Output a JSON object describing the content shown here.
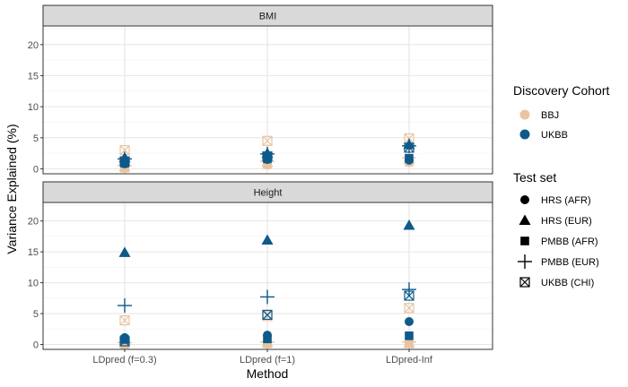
{
  "chart_data": {
    "type": "scatter",
    "xlabel": "Method",
    "ylabel": "Variance Explained (%)",
    "categories": [
      "LDpred (f=0.3)",
      "LDpred (f=1)",
      "LDpred-Inf"
    ],
    "y_ticks": [
      "0",
      "5",
      "10",
      "15",
      "20"
    ],
    "ylim": [
      -0.8,
      23
    ],
    "grid": true,
    "facets": [
      {
        "label": "BMI",
        "points": [
          {
            "method": "LDpred (f=0.3)",
            "cohort": "BBJ",
            "test": "HRS (AFR)",
            "y": 0.1
          },
          {
            "method": "LDpred (f=0.3)",
            "cohort": "BBJ",
            "test": "HRS (EUR)",
            "y": 0.3
          },
          {
            "method": "LDpred (f=0.3)",
            "cohort": "BBJ",
            "test": "PMBB (AFR)",
            "y": 0.1
          },
          {
            "method": "LDpred (f=0.3)",
            "cohort": "BBJ",
            "test": "PMBB (EUR)",
            "y": 0.5
          },
          {
            "method": "LDpred (f=0.3)",
            "cohort": "BBJ",
            "test": "UKBB (CHI)",
            "y": 3.0
          },
          {
            "method": "LDpred (f=0.3)",
            "cohort": "UKBB",
            "test": "HRS (AFR)",
            "y": 0.8
          },
          {
            "method": "LDpred (f=0.3)",
            "cohort": "UKBB",
            "test": "HRS (EUR)",
            "y": 1.8
          },
          {
            "method": "LDpred (f=0.3)",
            "cohort": "UKBB",
            "test": "PMBB (AFR)",
            "y": 0.9
          },
          {
            "method": "LDpred (f=0.3)",
            "cohort": "UKBB",
            "test": "PMBB (EUR)",
            "y": 1.6
          },
          {
            "method": "LDpred (f=0.3)",
            "cohort": "UKBB",
            "test": "UKBB (CHI)",
            "y": 1.2
          },
          {
            "method": "LDpred (f=1)",
            "cohort": "BBJ",
            "test": "HRS (AFR)",
            "y": 0.6
          },
          {
            "method": "LDpred (f=1)",
            "cohort": "BBJ",
            "test": "HRS (EUR)",
            "y": 1.0
          },
          {
            "method": "LDpred (f=1)",
            "cohort": "BBJ",
            "test": "PMBB (AFR)",
            "y": 0.7
          },
          {
            "method": "LDpred (f=1)",
            "cohort": "BBJ",
            "test": "PMBB (EUR)",
            "y": 1.2
          },
          {
            "method": "LDpred (f=1)",
            "cohort": "BBJ",
            "test": "UKBB (CHI)",
            "y": 4.5
          },
          {
            "method": "LDpred (f=1)",
            "cohort": "UKBB",
            "test": "HRS (AFR)",
            "y": 1.5
          },
          {
            "method": "LDpred (f=1)",
            "cohort": "UKBB",
            "test": "HRS (EUR)",
            "y": 2.5
          },
          {
            "method": "LDpred (f=1)",
            "cohort": "UKBB",
            "test": "PMBB (AFR)",
            "y": 1.6
          },
          {
            "method": "LDpred (f=1)",
            "cohort": "UKBB",
            "test": "PMBB (EUR)",
            "y": 2.4
          },
          {
            "method": "LDpred (f=1)",
            "cohort": "UKBB",
            "test": "UKBB (CHI)",
            "y": 2.0
          },
          {
            "method": "LDpred-Inf",
            "cohort": "BBJ",
            "test": "HRS (AFR)",
            "y": 1.0
          },
          {
            "method": "LDpred-Inf",
            "cohort": "BBJ",
            "test": "HRS (EUR)",
            "y": 1.5
          },
          {
            "method": "LDpred-Inf",
            "cohort": "BBJ",
            "test": "PMBB (AFR)",
            "y": 1.1
          },
          {
            "method": "LDpred-Inf",
            "cohort": "BBJ",
            "test": "PMBB (EUR)",
            "y": 1.8
          },
          {
            "method": "LDpred-Inf",
            "cohort": "BBJ",
            "test": "UKBB (CHI)",
            "y": 4.9
          },
          {
            "method": "LDpred-Inf",
            "cohort": "UKBB",
            "test": "HRS (AFR)",
            "y": 1.4
          },
          {
            "method": "LDpred-Inf",
            "cohort": "UKBB",
            "test": "HRS (EUR)",
            "y": 3.9
          },
          {
            "method": "LDpred-Inf",
            "cohort": "UKBB",
            "test": "PMBB (AFR)",
            "y": 1.7
          },
          {
            "method": "LDpred-Inf",
            "cohort": "UKBB",
            "test": "PMBB (EUR)",
            "y": 3.7
          },
          {
            "method": "LDpred-Inf",
            "cohort": "UKBB",
            "test": "UKBB (CHI)",
            "y": 3.4
          }
        ]
      },
      {
        "label": "Height",
        "points": [
          {
            "method": "LDpred (f=0.3)",
            "cohort": "BBJ",
            "test": "HRS (AFR)",
            "y": 0.1
          },
          {
            "method": "LDpred (f=0.3)",
            "cohort": "BBJ",
            "test": "HRS (EUR)",
            "y": 0.2
          },
          {
            "method": "LDpred (f=0.3)",
            "cohort": "BBJ",
            "test": "PMBB (AFR)",
            "y": 0.0
          },
          {
            "method": "LDpred (f=0.3)",
            "cohort": "BBJ",
            "test": "PMBB (EUR)",
            "y": 0.3
          },
          {
            "method": "LDpred (f=0.3)",
            "cohort": "BBJ",
            "test": "UKBB (CHI)",
            "y": 3.9
          },
          {
            "method": "LDpred (f=0.3)",
            "cohort": "UKBB",
            "test": "HRS (AFR)",
            "y": 1.1
          },
          {
            "method": "LDpred (f=0.3)",
            "cohort": "UKBB",
            "test": "HRS (EUR)",
            "y": 14.9
          },
          {
            "method": "LDpred (f=0.3)",
            "cohort": "UKBB",
            "test": "PMBB (AFR)",
            "y": 0.8
          },
          {
            "method": "LDpred (f=0.3)",
            "cohort": "UKBB",
            "test": "PMBB (EUR)",
            "y": 6.3
          },
          {
            "method": "LDpred (f=0.3)",
            "cohort": "UKBB",
            "test": "UKBB (CHI)",
            "y": 0.5
          },
          {
            "method": "LDpred (f=1)",
            "cohort": "BBJ",
            "test": "HRS (AFR)",
            "y": 0.1
          },
          {
            "method": "LDpred (f=1)",
            "cohort": "BBJ",
            "test": "HRS (EUR)",
            "y": 0.3
          },
          {
            "method": "LDpred (f=1)",
            "cohort": "BBJ",
            "test": "PMBB (AFR)",
            "y": 0.1
          },
          {
            "method": "LDpred (f=1)",
            "cohort": "BBJ",
            "test": "PMBB (EUR)",
            "y": 0.4
          },
          {
            "method": "LDpred (f=1)",
            "cohort": "BBJ",
            "test": "UKBB (CHI)",
            "y": 4.6
          },
          {
            "method": "LDpred (f=1)",
            "cohort": "UKBB",
            "test": "HRS (AFR)",
            "y": 1.5
          },
          {
            "method": "LDpred (f=1)",
            "cohort": "UKBB",
            "test": "HRS (EUR)",
            "y": 16.9
          },
          {
            "method": "LDpred (f=1)",
            "cohort": "UKBB",
            "test": "PMBB (AFR)",
            "y": 0.9
          },
          {
            "method": "LDpred (f=1)",
            "cohort": "UKBB",
            "test": "PMBB (EUR)",
            "y": 7.7
          },
          {
            "method": "LDpred (f=1)",
            "cohort": "UKBB",
            "test": "UKBB (CHI)",
            "y": 4.8
          },
          {
            "method": "LDpred-Inf",
            "cohort": "BBJ",
            "test": "HRS (AFR)",
            "y": 0.3
          },
          {
            "method": "LDpred-Inf",
            "cohort": "BBJ",
            "test": "HRS (EUR)",
            "y": 0.2
          },
          {
            "method": "LDpred-Inf",
            "cohort": "BBJ",
            "test": "PMBB (AFR)",
            "y": 0.1
          },
          {
            "method": "LDpred-Inf",
            "cohort": "BBJ",
            "test": "PMBB (EUR)",
            "y": 0.4
          },
          {
            "method": "LDpred-Inf",
            "cohort": "BBJ",
            "test": "UKBB (CHI)",
            "y": 5.9
          },
          {
            "method": "LDpred-Inf",
            "cohort": "UKBB",
            "test": "HRS (AFR)",
            "y": 3.7
          },
          {
            "method": "LDpred-Inf",
            "cohort": "UKBB",
            "test": "HRS (EUR)",
            "y": 19.3
          },
          {
            "method": "LDpred-Inf",
            "cohort": "UKBB",
            "test": "PMBB (AFR)",
            "y": 1.4
          },
          {
            "method": "LDpred-Inf",
            "cohort": "UKBB",
            "test": "PMBB (EUR)",
            "y": 8.9
          },
          {
            "method": "LDpred-Inf",
            "cohort": "UKBB",
            "test": "UKBB (CHI)",
            "y": 7.9
          }
        ]
      }
    ],
    "legend": {
      "placement": "right",
      "cohort": {
        "title": "Discovery Cohort",
        "items": [
          {
            "label": "BBJ",
            "color": "#E8C4A0"
          },
          {
            "label": "UKBB",
            "color": "#0E5A8A"
          }
        ]
      },
      "test": {
        "title": "Test set",
        "items": [
          {
            "label": "HRS (AFR)",
            "shape": "circle"
          },
          {
            "label": "HRS (EUR)",
            "shape": "triangle"
          },
          {
            "label": "PMBB (AFR)",
            "shape": "square"
          },
          {
            "label": "PMBB (EUR)",
            "shape": "plus"
          },
          {
            "label": "UKBB (CHI)",
            "shape": "boxed-x"
          }
        ]
      }
    }
  }
}
